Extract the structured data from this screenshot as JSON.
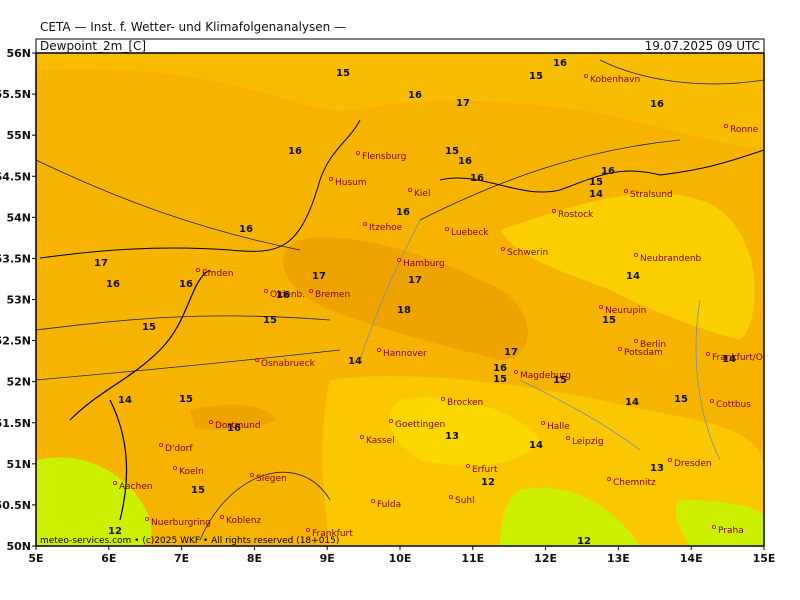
{
  "header": {
    "title": "CETA — Inst. f. Wetter- und Klimafolgenanalysen —",
    "field": "Dewpoint_2m_[C]",
    "valid": "19.07.2025 09 UTC"
  },
  "lat_labels": [
    "56N",
    "55.5N",
    "55N",
    "54.5N",
    "54N",
    "53.5N",
    "53N",
    "52.5N",
    "52N",
    "51.5N",
    "51N",
    "50.5N",
    "50N"
  ],
  "lon_labels": [
    "5E",
    "6E",
    "7E",
    "8E",
    "9E",
    "10E",
    "11E",
    "12E",
    "13E",
    "14E",
    "15E"
  ],
  "cities": [
    "Kobenhavn",
    "Ronne",
    "Flensburg",
    "Husum",
    "Kiel",
    "Rostock",
    "Stralsund",
    "Itzehoe",
    "Luebeck",
    "Schwerin",
    "Neubrandenb",
    "Hamburg",
    "Emden",
    "Oldenb.",
    "Bremen",
    "Neurupin",
    "Berlin",
    "Potsdam",
    "Hannover",
    "Osnabrueck",
    "Frankfurt/O",
    "Magdeburg",
    "Brocken",
    "Cottbus",
    "Dortmund",
    "Goettingen",
    "Halle",
    "Kassel",
    "Leipzig",
    "D'dorf",
    "Erfurt",
    "Koeln",
    "Dresden",
    "Chemnitz",
    "Siegen",
    "Aachen",
    "Fulda",
    "Suhl",
    "Nuerburgring",
    "Koblenz",
    "Frankfurt",
    "Praha"
  ],
  "contour_labels": [
    15,
    16,
    17,
    15,
    16,
    16,
    16,
    15,
    16,
    16,
    16,
    15,
    14,
    16,
    16,
    17,
    16,
    16,
    17,
    17,
    16,
    18,
    15,
    15,
    14,
    15,
    17,
    14,
    16,
    15,
    15,
    14,
    14,
    15,
    16,
    14,
    15,
    13,
    14,
    13,
    12,
    15,
    12,
    12
  ],
  "footer": "meteo-services.com • (c)2025 WKF • All rights reserved (18+015)"
}
